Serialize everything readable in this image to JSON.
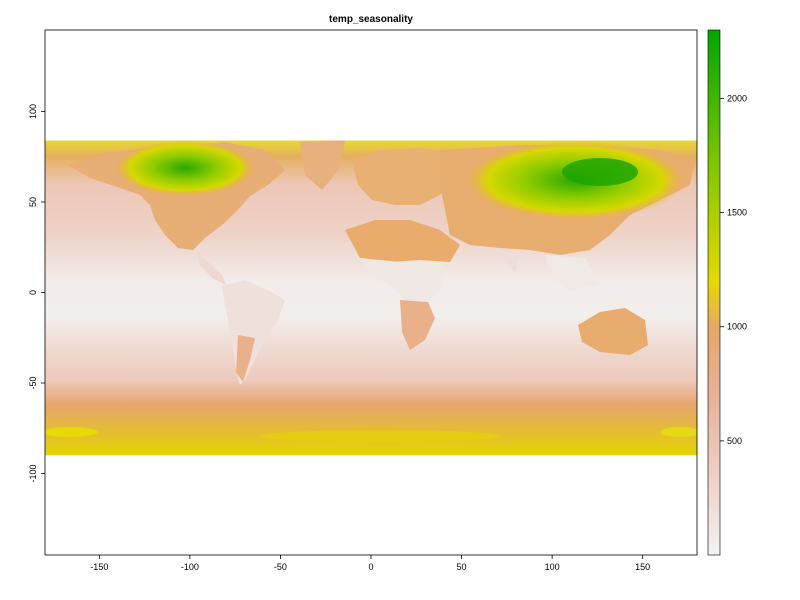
{
  "chart_data": {
    "type": "heatmap",
    "title": "temp_seasonality",
    "xlabel": "",
    "ylabel": "",
    "xlim": [
      -180,
      180
    ],
    "ylim": [
      -145,
      145
    ],
    "data_extent": {
      "x": [
        -180,
        180
      ],
      "y": [
        -90,
        84
      ]
    },
    "xticks": [
      -150,
      -100,
      -50,
      0,
      50,
      100,
      150
    ],
    "xtick_labels": [
      "-150",
      "-100",
      "-50",
      "0",
      "50",
      "100",
      "150"
    ],
    "yticks": [
      -100,
      -50,
      0,
      50,
      100
    ],
    "ytick_labels": [
      "-100",
      "-50",
      "0",
      "50",
      "100"
    ],
    "legend": {
      "position": "right",
      "range": [
        0,
        2300
      ],
      "ticks": [
        500,
        1000,
        1500,
        2000
      ],
      "tick_labels": [
        "500",
        "1000",
        "1500",
        "2000"
      ],
      "colors": [
        "#F2F2F2",
        "#EEBEAD",
        "#E6A070",
        "#E6D700",
        "#96CC00",
        "#00A600"
      ]
    },
    "grid": false
  }
}
